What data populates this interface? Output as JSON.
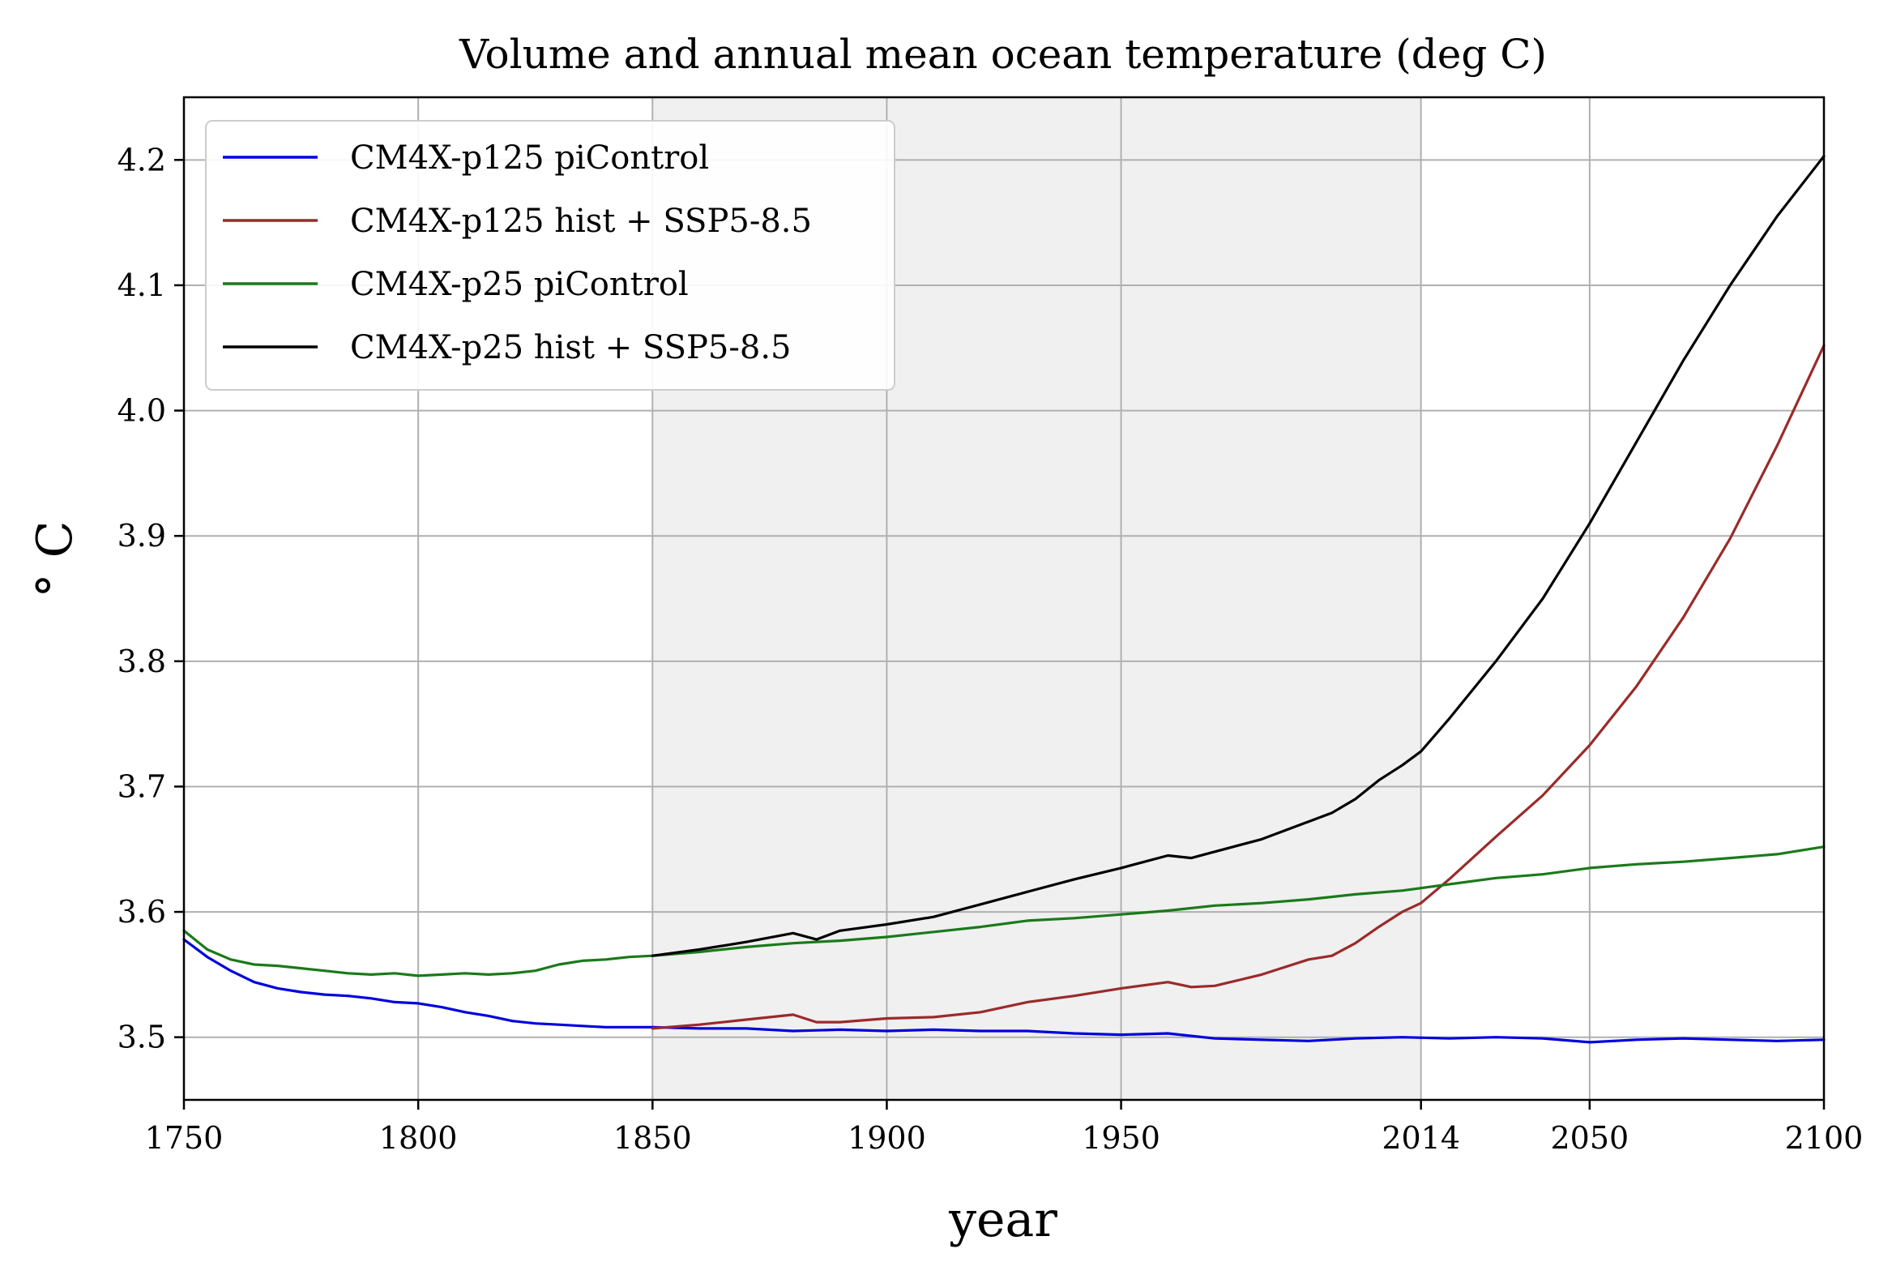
{
  "chart_data": {
    "type": "line",
    "title": "Volume and annual mean ocean temperature (deg C)",
    "xlabel": "year",
    "ylabel": "° C",
    "xlim": [
      1750,
      2100
    ],
    "ylim": [
      3.45,
      4.25
    ],
    "xticks": [
      1750,
      1800,
      1850,
      1900,
      1950,
      2014,
      2050,
      2100
    ],
    "yticks": [
      3.5,
      3.6,
      3.7,
      3.8,
      3.9,
      4.0,
      4.1,
      4.2
    ],
    "grid": true,
    "legend_position": "upper-left",
    "shaded_region": {
      "x_start": 1850,
      "x_end": 2014,
      "color": "#f0f0f0"
    },
    "series": [
      {
        "name": "CM4X-p125 piControl",
        "color": "#0000dd",
        "x": [
          1750,
          1755,
          1760,
          1765,
          1770,
          1775,
          1780,
          1785,
          1790,
          1795,
          1800,
          1805,
          1810,
          1815,
          1820,
          1825,
          1830,
          1835,
          1840,
          1845,
          1850,
          1860,
          1870,
          1880,
          1890,
          1900,
          1910,
          1920,
          1930,
          1940,
          1950,
          1960,
          1970,
          1980,
          1990,
          2000,
          2010,
          2020,
          2030,
          2040,
          2050,
          2060,
          2070,
          2080,
          2090,
          2100
        ],
        "values": [
          3.578,
          3.564,
          3.553,
          3.544,
          3.539,
          3.536,
          3.534,
          3.533,
          3.531,
          3.528,
          3.527,
          3.524,
          3.52,
          3.517,
          3.513,
          3.511,
          3.51,
          3.509,
          3.508,
          3.508,
          3.508,
          3.507,
          3.507,
          3.505,
          3.506,
          3.505,
          3.506,
          3.505,
          3.505,
          3.503,
          3.502,
          3.503,
          3.499,
          3.498,
          3.497,
          3.499,
          3.5,
          3.499,
          3.5,
          3.499,
          3.496,
          3.498,
          3.499,
          3.498,
          3.497,
          3.498
        ]
      },
      {
        "name": "CM4X-p125 hist + SSP5-8.5",
        "color": "#9b2a2a",
        "x": [
          1850,
          1860,
          1870,
          1880,
          1885,
          1890,
          1900,
          1910,
          1920,
          1930,
          1940,
          1950,
          1960,
          1965,
          1970,
          1980,
          1990,
          1995,
          2000,
          2005,
          2010,
          2014,
          2020,
          2030,
          2040,
          2050,
          2060,
          2070,
          2080,
          2090,
          2100
        ],
        "values": [
          3.507,
          3.51,
          3.514,
          3.518,
          3.512,
          3.512,
          3.515,
          3.516,
          3.52,
          3.528,
          3.533,
          3.539,
          3.544,
          3.54,
          3.541,
          3.55,
          3.562,
          3.565,
          3.575,
          3.588,
          3.6,
          3.607,
          3.626,
          3.66,
          3.693,
          3.733,
          3.78,
          3.835,
          3.898,
          3.972,
          4.052
        ]
      },
      {
        "name": "CM4X-p25 piControl",
        "color": "#1a7a1a",
        "x": [
          1750,
          1755,
          1760,
          1765,
          1770,
          1775,
          1780,
          1785,
          1790,
          1795,
          1800,
          1805,
          1810,
          1815,
          1820,
          1825,
          1830,
          1835,
          1840,
          1845,
          1850,
          1860,
          1870,
          1880,
          1890,
          1900,
          1910,
          1920,
          1930,
          1940,
          1950,
          1960,
          1970,
          1980,
          1990,
          2000,
          2010,
          2020,
          2030,
          2040,
          2050,
          2060,
          2070,
          2080,
          2090,
          2100
        ],
        "values": [
          3.585,
          3.57,
          3.562,
          3.558,
          3.557,
          3.555,
          3.553,
          3.551,
          3.55,
          3.551,
          3.549,
          3.55,
          3.551,
          3.55,
          3.551,
          3.553,
          3.558,
          3.561,
          3.562,
          3.564,
          3.565,
          3.568,
          3.572,
          3.575,
          3.577,
          3.58,
          3.584,
          3.588,
          3.593,
          3.595,
          3.598,
          3.601,
          3.605,
          3.607,
          3.61,
          3.614,
          3.617,
          3.622,
          3.627,
          3.63,
          3.635,
          3.638,
          3.64,
          3.643,
          3.646,
          3.652
        ]
      },
      {
        "name": "CM4X-p25 hist + SSP5-8.5",
        "color": "#000000",
        "x": [
          1850,
          1860,
          1870,
          1880,
          1885,
          1890,
          1900,
          1910,
          1920,
          1930,
          1940,
          1950,
          1960,
          1965,
          1970,
          1980,
          1990,
          1995,
          2000,
          2005,
          2010,
          2014,
          2020,
          2030,
          2040,
          2050,
          2060,
          2070,
          2080,
          2090,
          2100
        ],
        "values": [
          3.565,
          3.57,
          3.576,
          3.583,
          3.578,
          3.585,
          3.59,
          3.596,
          3.606,
          3.616,
          3.626,
          3.635,
          3.645,
          3.643,
          3.648,
          3.658,
          3.672,
          3.679,
          3.69,
          3.705,
          3.717,
          3.728,
          3.754,
          3.8,
          3.85,
          3.91,
          3.975,
          4.04,
          4.1,
          4.155,
          4.203
        ]
      }
    ]
  }
}
